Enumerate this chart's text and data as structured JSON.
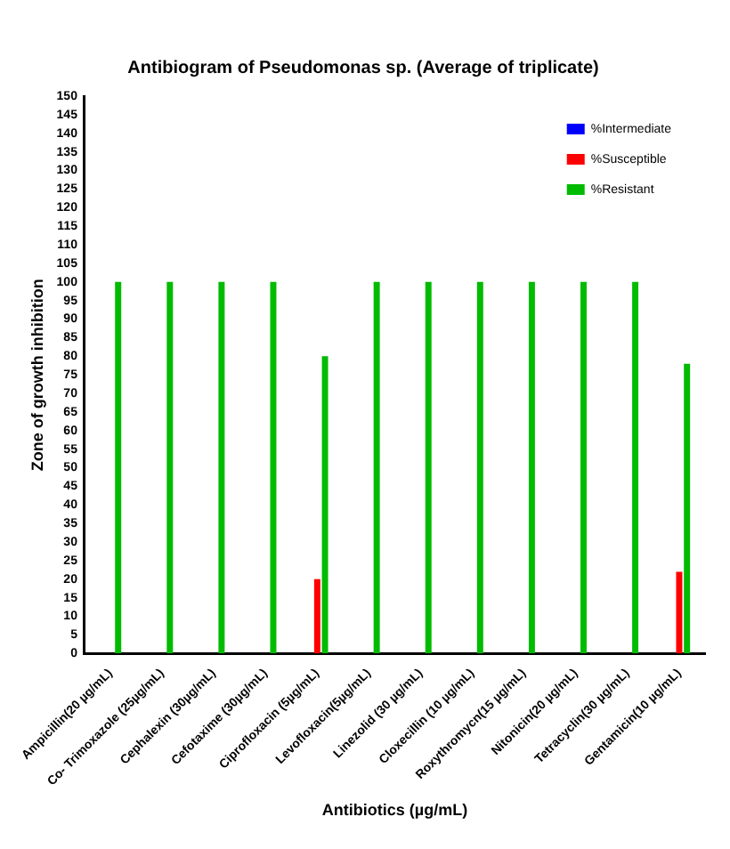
{
  "chart_data": {
    "type": "bar",
    "title": "Antibiogram of Pseudomonas sp. (Average of triplicate)",
    "xlabel": "Antibiotics (µg/mL)",
    "ylabel": "Zone of growth inhibition",
    "categories": [
      "Ampicillin(20 µg/mL)",
      "Co- Trimoxazole (25µg/mL)",
      "Cephalexin (30µg/mL)",
      "Cefotaxime (30µg/mL)",
      "Ciprofloxacin (5µg/mL)",
      "Levofloxacin(5µg/mL)",
      "Linezolid (30 µg/mL)",
      "Cloxecillin (10 µg/mL)",
      "Roxythromycn(15 µg/mL)",
      "Nitonicin(20 µg/mL)",
      "Tetracyclin(30 µg/mL)",
      "Gentamicin(10 µg/mL)"
    ],
    "series": [
      {
        "name": "%Intermediate",
        "color": "#0000ff",
        "values": [
          0,
          0,
          0,
          0,
          0,
          0,
          0,
          0,
          0,
          0,
          0,
          0
        ]
      },
      {
        "name": "%Susceptible",
        "color": "#ff0000",
        "values": [
          0,
          0,
          0,
          0,
          20,
          0,
          0,
          0,
          0,
          0,
          0,
          22
        ]
      },
      {
        "name": "%Resistant",
        "color": "#00bb00",
        "values": [
          100,
          100,
          100,
          100,
          80,
          100,
          100,
          100,
          100,
          100,
          100,
          78
        ]
      }
    ],
    "ylim": [
      0,
      150
    ],
    "yticks": [
      0,
      5,
      10,
      15,
      20,
      25,
      30,
      35,
      40,
      45,
      50,
      55,
      60,
      65,
      70,
      75,
      80,
      85,
      90,
      95,
      100,
      105,
      110,
      115,
      120,
      125,
      130,
      135,
      140,
      145,
      150
    ],
    "grid": false,
    "legend": "top right"
  }
}
